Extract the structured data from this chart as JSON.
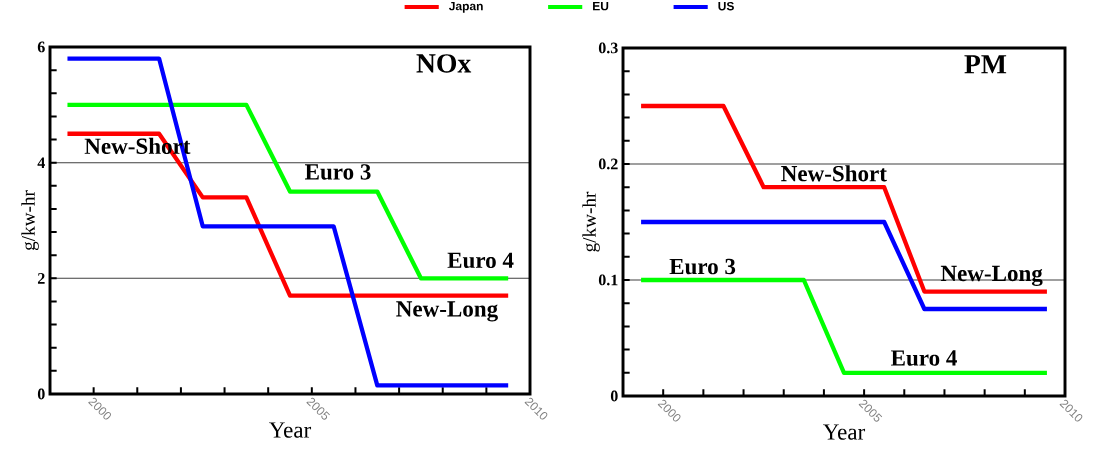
{
  "chart_data": [
    {
      "type": "line",
      "title": "NOx",
      "xlabel": "Year",
      "ylabel": "g/kw-hr",
      "xlim": [
        1999,
        2010
      ],
      "ylim": [
        0,
        6
      ],
      "xticks": [
        {
          "value": 1999,
          "label": null
        },
        2000,
        {
          "value": 2001,
          "label": null
        },
        {
          "value": 2002,
          "label": null
        },
        {
          "value": 2003,
          "label": null
        },
        {
          "value": 2004,
          "label": null
        },
        2005,
        {
          "value": 2006,
          "label": null
        },
        {
          "value": 2007,
          "label": null
        },
        {
          "value": 2008,
          "label": null
        },
        {
          "value": 2009,
          "label": null
        },
        2010
      ],
      "yticks": [
        0,
        {
          "value": 0.4,
          "label": null
        },
        {
          "value": 0.8,
          "label": null
        },
        {
          "value": 1.2,
          "label": null
        },
        {
          "value": 1.6,
          "label": null
        },
        2,
        {
          "value": 2.4,
          "label": null
        },
        {
          "value": 2.8,
          "label": null
        },
        {
          "value": 3.2,
          "label": null
        },
        {
          "value": 3.6,
          "label": null
        },
        4,
        {
          "value": 4.4,
          "label": null
        },
        {
          "value": 4.8,
          "label": null
        },
        {
          "value": 5.2,
          "label": null
        },
        {
          "value": 5.6,
          "label": null
        },
        6
      ],
      "grid": "y",
      "legend": "top",
      "marker": "none",
      "series": [
        {
          "name": "Japan",
          "color": "#ff0000",
          "x": [
            1999.4,
            2001.5,
            2002.5,
            2003.5,
            2004.5,
            2009.5
          ],
          "values": [
            4.5,
            4.5,
            3.4,
            3.4,
            1.7,
            1.7
          ]
        },
        {
          "name": "EU",
          "color": "#00ff00",
          "x": [
            1999.4,
            2003.5,
            2004.5,
            2006.5,
            2007.5,
            2009.5
          ],
          "values": [
            5.0,
            5.0,
            3.5,
            3.5,
            2.0,
            2.0
          ]
        },
        {
          "name": "US",
          "color": "#0000ff",
          "x": [
            1999.4,
            2001.5,
            2002.5,
            2005.5,
            2006.5,
            2009.5
          ],
          "values": [
            5.8,
            5.8,
            2.9,
            2.9,
            0.15,
            0.15
          ]
        }
      ],
      "annotations": [
        "New-Short",
        "Euro 3",
        "Euro 4",
        "New-Long"
      ]
    },
    {
      "type": "line",
      "title": "PM",
      "xlabel": "Year",
      "ylabel": "g/kw-hr",
      "xlim": [
        1999,
        2010
      ],
      "ylim": [
        0,
        0.3
      ],
      "xticks": [
        {
          "value": 1999,
          "label": null
        },
        2000,
        {
          "value": 2001,
          "label": null
        },
        {
          "value": 2002,
          "label": null
        },
        {
          "value": 2003,
          "label": null
        },
        {
          "value": 2004,
          "label": null
        },
        2005,
        {
          "value": 2006,
          "label": null
        },
        {
          "value": 2007,
          "label": null
        },
        {
          "value": 2008,
          "label": null
        },
        {
          "value": 2009,
          "label": null
        },
        2010
      ],
      "yticks": [
        0,
        {
          "value": 0.02,
          "label": null
        },
        {
          "value": 0.04,
          "label": null
        },
        {
          "value": 0.06,
          "label": null
        },
        {
          "value": 0.08,
          "label": null
        },
        {
          "value": 0.1,
          "label": "0.1"
        },
        {
          "value": 0.12,
          "label": null
        },
        {
          "value": 0.14,
          "label": null
        },
        {
          "value": 0.16,
          "label": null
        },
        {
          "value": 0.18,
          "label": null
        },
        {
          "value": 0.2,
          "label": "0.2"
        },
        {
          "value": 0.22,
          "label": null
        },
        {
          "value": 0.24,
          "label": null
        },
        {
          "value": 0.26,
          "label": null
        },
        {
          "value": 0.28,
          "label": null
        },
        {
          "value": 0.3,
          "label": "0.3"
        }
      ],
      "grid": "y",
      "marker": "none",
      "series": [
        {
          "color": "#ff0000",
          "x": [
            1999.45,
            2001.5,
            2002.5,
            2005.5,
            2006.5,
            2009.55
          ],
          "values": [
            0.25,
            0.25,
            0.18,
            0.18,
            0.09,
            0.09
          ]
        },
        {
          "color": "#0000ff",
          "x": [
            1999.45,
            2005.5,
            2006.5,
            2009.55
          ],
          "values": [
            0.15,
            0.15,
            0.075,
            0.075
          ]
        },
        {
          "color": "#00ff00",
          "x": [
            1999.45,
            2003.5,
            2004.5,
            2009.55
          ],
          "values": [
            0.1,
            0.1,
            0.02,
            0.02
          ]
        }
      ],
      "annotations": [
        "New-Short",
        "Euro 3",
        "Euro 4",
        "New-Long"
      ]
    }
  ]
}
